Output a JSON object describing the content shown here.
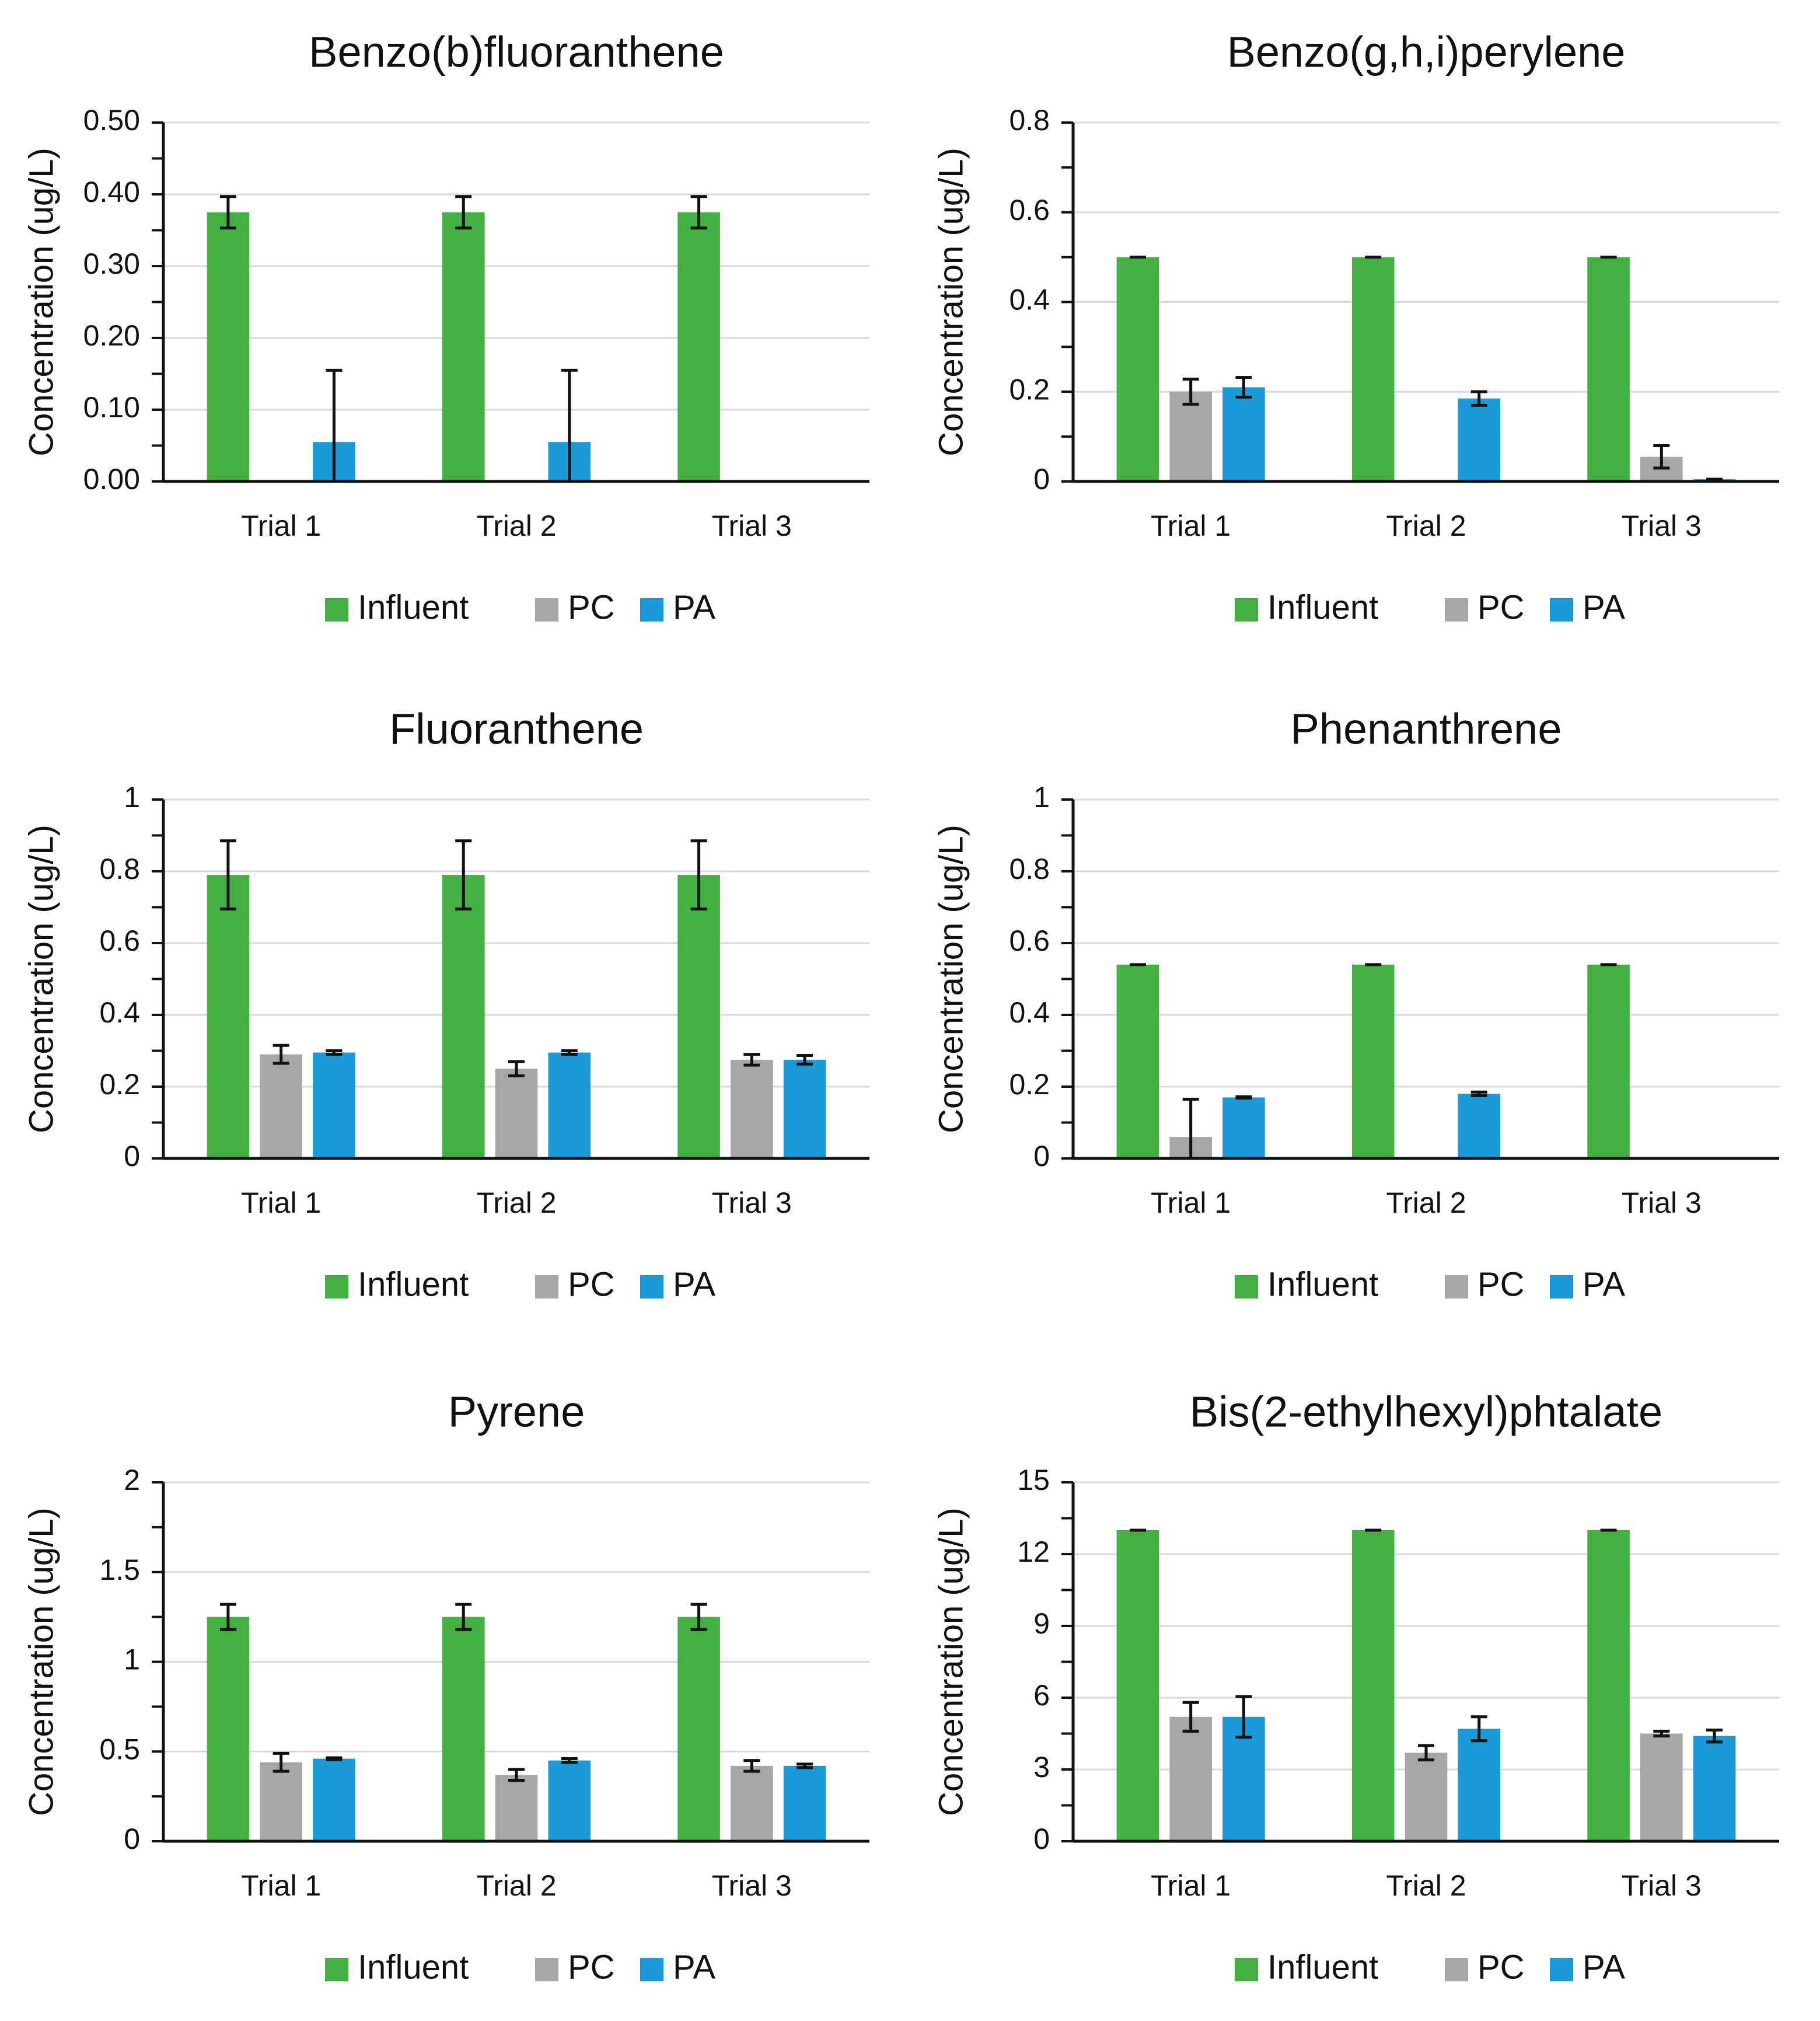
{
  "colors": {
    "influent": "#45b042",
    "pc": "#a6a6a6",
    "pa": "#1a9ad6",
    "axis": "#111111",
    "grid": "#d9d9d9",
    "error_bar": "#111111"
  },
  "chart_data": [
    {
      "type": "bar",
      "title": "Benzo(b)fluoranthene",
      "ylabel": "Concentration (ug/L)",
      "xlabel": "",
      "categories": [
        "Trial 1",
        "Trial 2",
        "Trial 3"
      ],
      "ylim": [
        0,
        0.5
      ],
      "yticks": [
        "0.00",
        "0.10",
        "0.20",
        "0.30",
        "0.40",
        "0.50"
      ],
      "grid": true,
      "legend_position": "bottom",
      "series": [
        {
          "name": "Influent",
          "color_key": "influent",
          "values": [
            0.375,
            0.375,
            0.375
          ],
          "errors": [
            0.022,
            0.022,
            0.022
          ]
        },
        {
          "name": "PC",
          "color_key": "pc",
          "values": [
            0,
            0,
            0
          ],
          "errors": [
            0,
            0,
            0
          ]
        },
        {
          "name": "PA",
          "color_key": "pa",
          "values": [
            0.055,
            0.055,
            0
          ],
          "errors": [
            0.1,
            0.1,
            0
          ]
        }
      ]
    },
    {
      "type": "bar",
      "title": "Benzo(g,h,i)perylene",
      "ylabel": "Concentration (ug/L)",
      "xlabel": "",
      "categories": [
        "Trial 1",
        "Trial 2",
        "Trial 3"
      ],
      "ylim": [
        0,
        0.8
      ],
      "yticks": [
        "0",
        "0.2",
        "0.4",
        "0.6",
        "0.8"
      ],
      "grid": true,
      "legend_position": "bottom",
      "series": [
        {
          "name": "Influent",
          "color_key": "influent",
          "values": [
            0.5,
            0.5,
            0.5
          ],
          "errors": [
            0,
            0,
            0
          ]
        },
        {
          "name": "PC",
          "color_key": "pc",
          "values": [
            0.2,
            0,
            0.055
          ],
          "errors": [
            0.028,
            0,
            0.025
          ]
        },
        {
          "name": "PA",
          "color_key": "pa",
          "values": [
            0.21,
            0.185,
            0.005
          ],
          "errors": [
            0.022,
            0.015,
            0
          ]
        }
      ]
    },
    {
      "type": "bar",
      "title": "Fluoranthene",
      "ylabel": "Concentration (ug/L)",
      "xlabel": "",
      "categories": [
        "Trial 1",
        "Trial 2",
        "Trial 3"
      ],
      "ylim": [
        0,
        1
      ],
      "yticks": [
        "0",
        "0.2",
        "0.4",
        "0.6",
        "0.8",
        "1"
      ],
      "grid": true,
      "legend_position": "bottom",
      "series": [
        {
          "name": "Influent",
          "color_key": "influent",
          "values": [
            0.79,
            0.79,
            0.79
          ],
          "errors": [
            0.095,
            0.095,
            0.095
          ]
        },
        {
          "name": "PC",
          "color_key": "pc",
          "values": [
            0.29,
            0.25,
            0.275
          ],
          "errors": [
            0.025,
            0.02,
            0.015
          ]
        },
        {
          "name": "PA",
          "color_key": "pa",
          "values": [
            0.295,
            0.295,
            0.275
          ],
          "errors": [
            0.005,
            0.005,
            0.012
          ]
        }
      ]
    },
    {
      "type": "bar",
      "title": "Phenanthrene",
      "ylabel": "Concentration (ug/L)",
      "xlabel": "",
      "categories": [
        "Trial 1",
        "Trial 2",
        "Trial 3"
      ],
      "ylim": [
        0,
        1
      ],
      "yticks": [
        "0",
        "0.2",
        "0.4",
        "0.6",
        "0.8",
        "1"
      ],
      "grid": true,
      "legend_position": "bottom",
      "series": [
        {
          "name": "Influent",
          "color_key": "influent",
          "values": [
            0.54,
            0.54,
            0.54
          ],
          "errors": [
            0,
            0,
            0
          ]
        },
        {
          "name": "PC",
          "color_key": "pc",
          "values": [
            0.06,
            0,
            0
          ],
          "errors": [
            0.105,
            0,
            0
          ]
        },
        {
          "name": "PA",
          "color_key": "pa",
          "values": [
            0.17,
            0.18,
            0
          ],
          "errors": [
            0.002,
            0.005,
            0
          ]
        }
      ]
    },
    {
      "type": "bar",
      "title": "Pyrene",
      "ylabel": "Concentration (ug/L)",
      "xlabel": "",
      "categories": [
        "Trial 1",
        "Trial 2",
        "Trial 3"
      ],
      "ylim": [
        0,
        2
      ],
      "yticks": [
        "0",
        "0.5",
        "1",
        "1.5",
        "2"
      ],
      "grid": true,
      "legend_position": "bottom",
      "series": [
        {
          "name": "Influent",
          "color_key": "influent",
          "values": [
            1.25,
            1.25,
            1.25
          ],
          "errors": [
            0.07,
            0.07,
            0.07
          ]
        },
        {
          "name": "PC",
          "color_key": "pc",
          "values": [
            0.44,
            0.37,
            0.42
          ],
          "errors": [
            0.05,
            0.03,
            0.03
          ]
        },
        {
          "name": "PA",
          "color_key": "pa",
          "values": [
            0.46,
            0.45,
            0.42
          ],
          "errors": [
            0.005,
            0.01,
            0.01
          ]
        }
      ]
    },
    {
      "type": "bar",
      "title": "Bis(2-ethylhexyl)phtalate",
      "ylabel": "Concentration (ug/L)",
      "xlabel": "",
      "categories": [
        "Trial 1",
        "Trial 2",
        "Trial 3"
      ],
      "ylim": [
        0,
        15
      ],
      "yticks": [
        "0",
        "3",
        "6",
        "9",
        "12",
        "15"
      ],
      "grid": true,
      "legend_position": "bottom",
      "series": [
        {
          "name": "Influent",
          "color_key": "influent",
          "values": [
            13,
            13,
            13
          ],
          "errors": [
            0,
            0,
            0
          ]
        },
        {
          "name": "PC",
          "color_key": "pc",
          "values": [
            5.2,
            3.7,
            4.5
          ],
          "errors": [
            0.6,
            0.3,
            0.1
          ]
        },
        {
          "name": "PA",
          "color_key": "pa",
          "values": [
            5.2,
            4.7,
            4.4
          ],
          "errors": [
            0.85,
            0.5,
            0.25
          ]
        }
      ]
    }
  ]
}
